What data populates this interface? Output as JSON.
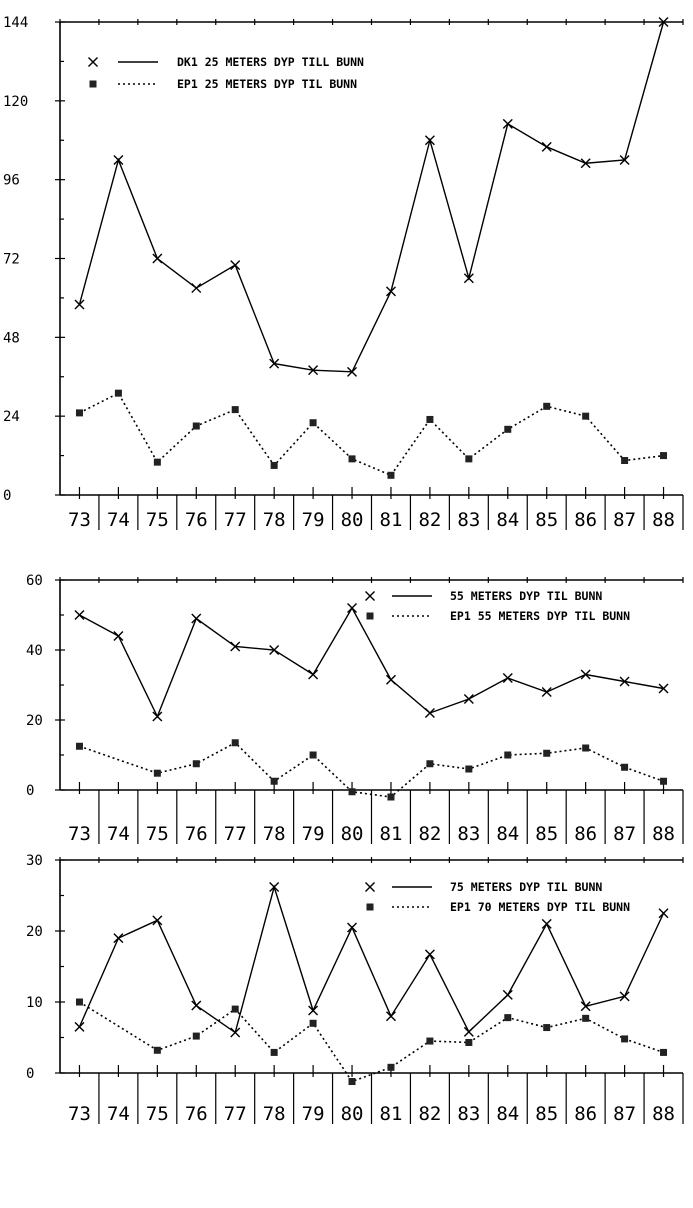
{
  "chart_data": [
    {
      "type": "line",
      "categories": [
        "73",
        "74",
        "75",
        "76",
        "77",
        "78",
        "79",
        "80",
        "81",
        "82",
        "83",
        "84",
        "85",
        "86",
        "87",
        "88"
      ],
      "ylim": [
        0,
        144
      ],
      "yticks": [
        0,
        24,
        48,
        72,
        96,
        120,
        144
      ],
      "legend_position": "top-left",
      "series": [
        {
          "name": "DK1 25 METERS DYP TILL BUNN",
          "style": "solid",
          "marker": "x",
          "values": [
            58,
            102,
            72,
            63,
            70,
            40,
            38,
            37.5,
            62,
            108,
            66,
            113,
            106,
            101,
            102,
            144
          ]
        },
        {
          "name": "EP1 25 METERS DYP TIL BUNN",
          "style": "dotted",
          "marker": "square",
          "values": [
            25,
            31,
            10,
            21,
            26,
            9,
            22,
            11,
            6,
            23,
            11,
            20,
            27,
            24,
            10.5,
            12
          ]
        }
      ]
    },
    {
      "type": "line",
      "categories": [
        "73",
        "74",
        "75",
        "76",
        "77",
        "78",
        "79",
        "80",
        "81",
        "82",
        "83",
        "84",
        "85",
        "86",
        "87",
        "88"
      ],
      "ylim": [
        0,
        60
      ],
      "yticks": [
        0,
        20,
        40,
        60
      ],
      "legend_position": "top-right",
      "series": [
        {
          "name": "55 METERS DYP TIL BUNN",
          "style": "solid",
          "marker": "x",
          "values": [
            50,
            44,
            21,
            49,
            41,
            40,
            33,
            52,
            31.5,
            22,
            26,
            32,
            28,
            33,
            31,
            29
          ]
        },
        {
          "name": "EP1 55 METERS DYP TIL BUNN",
          "style": "dotted",
          "marker": "square",
          "values": [
            12.5,
            null,
            4.8,
            7.5,
            13.5,
            2.5,
            10,
            -0.5,
            -2,
            7.5,
            6,
            10,
            10.5,
            12,
            6.5,
            2.5
          ]
        }
      ]
    },
    {
      "type": "line",
      "categories": [
        "73",
        "74",
        "75",
        "76",
        "77",
        "78",
        "79",
        "80",
        "81",
        "82",
        "83",
        "84",
        "85",
        "86",
        "87",
        "88"
      ],
      "ylim": [
        0,
        30
      ],
      "yticks": [
        0,
        10,
        20,
        30
      ],
      "legend_position": "top-right",
      "series": [
        {
          "name": "75 METERS DYP TIL BUNN",
          "style": "solid",
          "marker": "x",
          "values": [
            6.5,
            19,
            21.5,
            9.5,
            5.7,
            26.2,
            8.8,
            20.5,
            8,
            16.7,
            5.8,
            11,
            21,
            9.4,
            10.8,
            22.5
          ]
        },
        {
          "name": "EP1 70 METERS DYP TIL BUNN",
          "style": "dotted",
          "marker": "square",
          "values": [
            10,
            null,
            3.2,
            5.2,
            9,
            2.9,
            7,
            -1.2,
            0.8,
            4.5,
            4.3,
            7.8,
            6.4,
            7.7,
            4.8,
            2.9
          ]
        }
      ]
    }
  ]
}
